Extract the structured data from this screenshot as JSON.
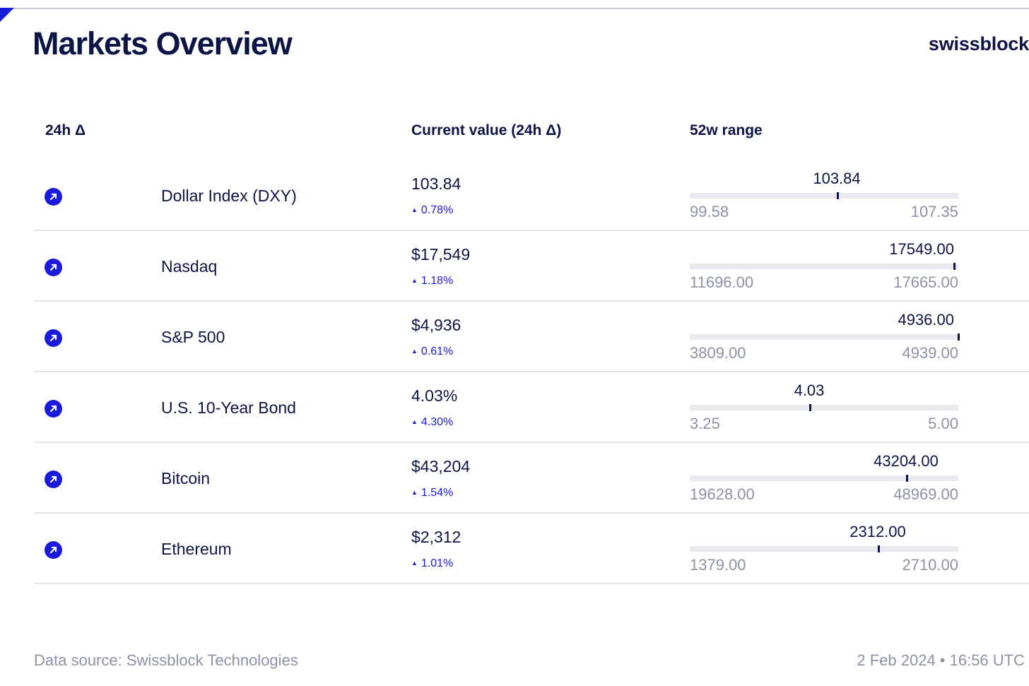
{
  "header": {
    "title": "Markets Overview",
    "brand": "swissblock"
  },
  "columns": {
    "change": "24h Δ",
    "current": "Current value (24h Δ)",
    "range": "52w range"
  },
  "rows": [
    {
      "icon": "arrow-up-right-icon",
      "name": "Dollar Index (DXY)",
      "value": "103.84",
      "change": "0.78%",
      "range_current": "103.84",
      "range_low": "99.58",
      "range_high": "107.35",
      "range_fraction": 0.548
    },
    {
      "icon": "arrow-up-right-icon",
      "name": "Nasdaq",
      "value": "$17,549",
      "change": "1.18%",
      "range_current": "17549.00",
      "range_low": "11696.00",
      "range_high": "17665.00",
      "range_fraction": 0.981
    },
    {
      "icon": "arrow-up-right-icon",
      "name": "S&P 500",
      "value": "$4,936",
      "change": "0.61%",
      "range_current": "4936.00",
      "range_low": "3809.00",
      "range_high": "4939.00",
      "range_fraction": 0.997
    },
    {
      "icon": "arrow-up-right-icon",
      "name": "U.S. 10-Year Bond",
      "value": "4.03%",
      "change": "4.30%",
      "range_current": "4.03",
      "range_low": "3.25",
      "range_high": "5.00",
      "range_fraction": 0.446
    },
    {
      "icon": "arrow-up-right-icon",
      "name": "Bitcoin",
      "value": "$43,204",
      "change": "1.54%",
      "range_current": "43204.00",
      "range_low": "19628.00",
      "range_high": "48969.00",
      "range_fraction": 0.804
    },
    {
      "icon": "arrow-up-right-icon",
      "name": "Ethereum",
      "value": "$2,312",
      "change": "1.01%",
      "range_current": "2312.00",
      "range_low": "1379.00",
      "range_high": "2710.00",
      "range_fraction": 0.701
    }
  ],
  "footer": {
    "source": "Data source: Swissblock Technologies",
    "timestamp": "2 Feb 2024 • 16:56 UTC"
  },
  "colors": {
    "accent": "#1a1adb",
    "text": "#0d1547",
    "muted": "#8d92a8",
    "track": "#e8eaf0",
    "divider": "#dfe2e8"
  }
}
